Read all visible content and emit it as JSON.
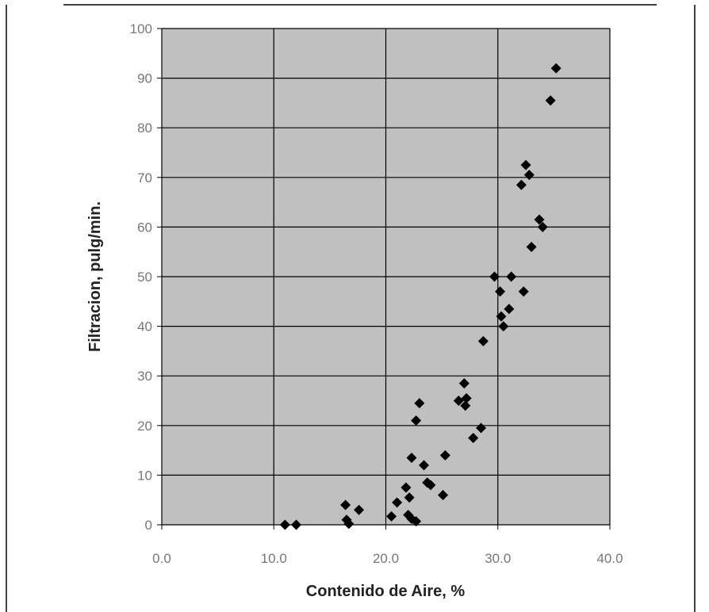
{
  "chart_data": {
    "type": "scatter",
    "title": "",
    "xlabel": "Contenido de Aire, %",
    "ylabel": "Filtracion, pulg/min.",
    "xlim": [
      0,
      40
    ],
    "ylim": [
      0,
      100
    ],
    "x_ticks": [
      "0.0",
      "10.0",
      "20.0",
      "30.0",
      "40.0"
    ],
    "y_ticks": [
      "0",
      "10",
      "20",
      "30",
      "40",
      "50",
      "60",
      "70",
      "80",
      "90",
      "100"
    ],
    "grid": true,
    "legend": false,
    "plot_background": "#c0c0c0",
    "marker_color": "#000000",
    "marker": "diamond",
    "points": [
      {
        "x": 11.0,
        "y": 0.0
      },
      {
        "x": 12.0,
        "y": 0.0
      },
      {
        "x": 16.4,
        "y": 4.0
      },
      {
        "x": 16.5,
        "y": 1.0
      },
      {
        "x": 16.7,
        "y": 0.2
      },
      {
        "x": 17.6,
        "y": 3.0
      },
      {
        "x": 20.5,
        "y": 1.7
      },
      {
        "x": 21.0,
        "y": 4.5
      },
      {
        "x": 21.8,
        "y": 7.5
      },
      {
        "x": 22.0,
        "y": 2.0
      },
      {
        "x": 22.1,
        "y": 5.5
      },
      {
        "x": 22.3,
        "y": 13.5
      },
      {
        "x": 22.3,
        "y": 1.2
      },
      {
        "x": 22.7,
        "y": 0.7
      },
      {
        "x": 22.7,
        "y": 21.0
      },
      {
        "x": 23.0,
        "y": 24.5
      },
      {
        "x": 23.4,
        "y": 12.0
      },
      {
        "x": 23.7,
        "y": 8.5
      },
      {
        "x": 24.0,
        "y": 8.0
      },
      {
        "x": 25.1,
        "y": 6.0
      },
      {
        "x": 25.3,
        "y": 14.0
      },
      {
        "x": 26.5,
        "y": 25.0
      },
      {
        "x": 27.0,
        "y": 28.5
      },
      {
        "x": 27.1,
        "y": 24.0
      },
      {
        "x": 27.2,
        "y": 25.5
      },
      {
        "x": 27.8,
        "y": 17.5
      },
      {
        "x": 28.5,
        "y": 19.5
      },
      {
        "x": 28.7,
        "y": 37.0
      },
      {
        "x": 29.7,
        "y": 50.0
      },
      {
        "x": 30.2,
        "y": 47.0
      },
      {
        "x": 30.3,
        "y": 42.0
      },
      {
        "x": 30.5,
        "y": 40.0
      },
      {
        "x": 31.0,
        "y": 43.5
      },
      {
        "x": 31.2,
        "y": 50.0
      },
      {
        "x": 32.1,
        "y": 68.5
      },
      {
        "x": 32.3,
        "y": 47.0
      },
      {
        "x": 32.5,
        "y": 72.5
      },
      {
        "x": 32.8,
        "y": 70.5
      },
      {
        "x": 33.0,
        "y": 56.0
      },
      {
        "x": 33.7,
        "y": 61.5
      },
      {
        "x": 34.0,
        "y": 60.0
      },
      {
        "x": 34.7,
        "y": 85.5
      },
      {
        "x": 35.2,
        "y": 92.0
      }
    ]
  }
}
